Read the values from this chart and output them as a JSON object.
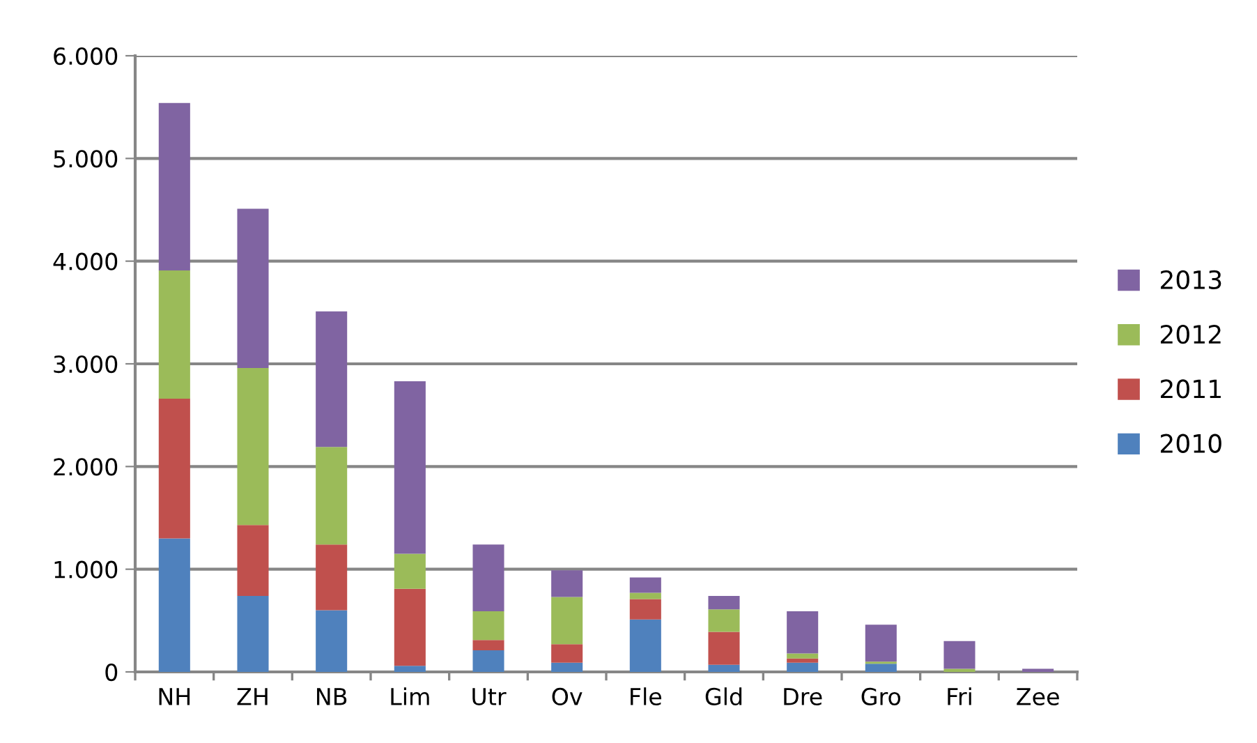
{
  "chart_data": {
    "type": "bar",
    "stacked": true,
    "categories": [
      "NH",
      "ZH",
      "NB",
      "Lim",
      "Utr",
      "Ov",
      "Fle",
      "Gld",
      "Dre",
      "Gro",
      "Fri",
      "Zee"
    ],
    "series": [
      {
        "name": "2010",
        "color": "#4f81bd",
        "values": [
          1300,
          740,
          600,
          60,
          210,
          90,
          510,
          70,
          90,
          80,
          0,
          0
        ]
      },
      {
        "name": "2011",
        "color": "#c0504d",
        "values": [
          1360,
          690,
          640,
          750,
          100,
          180,
          200,
          320,
          40,
          0,
          0,
          0
        ]
      },
      {
        "name": "2012",
        "color": "#9bbb59",
        "values": [
          1250,
          1530,
          950,
          340,
          280,
          460,
          60,
          220,
          50,
          20,
          30,
          0
        ]
      },
      {
        "name": "2013",
        "color": "#8064a2",
        "values": [
          1630,
          1550,
          1320,
          1680,
          650,
          260,
          150,
          130,
          410,
          360,
          270,
          30
        ]
      }
    ],
    "ylim": [
      0,
      6000
    ],
    "yticks": [
      {
        "value": 0,
        "label": "0"
      },
      {
        "value": 1000,
        "label": "1.000"
      },
      {
        "value": 2000,
        "label": "2.000"
      },
      {
        "value": 3000,
        "label": "3.000"
      },
      {
        "value": 4000,
        "label": "4.000"
      },
      {
        "value": 5000,
        "label": "5.000"
      },
      {
        "value": 6000,
        "label": "6.000"
      }
    ],
    "grid": "y",
    "legend": "right"
  }
}
